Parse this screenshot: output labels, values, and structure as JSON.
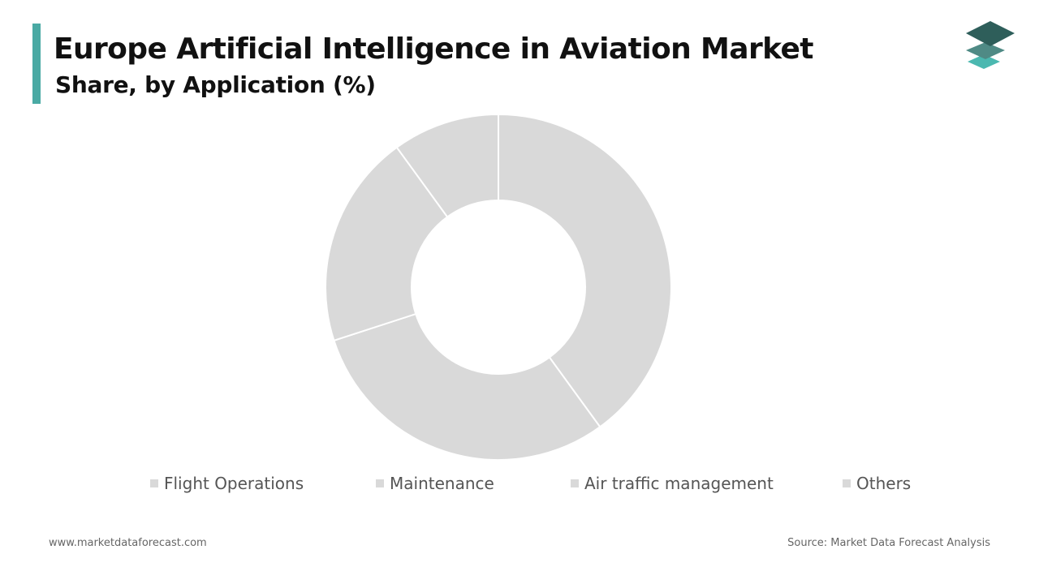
{
  "header": {
    "title": "Europe Artificial Intelligence in Aviation Market",
    "subtitle": "Share, by Application (%)"
  },
  "colors": {
    "accent": "#4aaaa4",
    "slice": "#d9d9d9",
    "slice_border": "#ffffff",
    "logo_top": "#2e5e5a",
    "logo_mid": "#4f8a85",
    "logo_bottom": "#4bb8b0"
  },
  "logo": {
    "icon": "stacked-layers-icon"
  },
  "chart_data": {
    "type": "pie",
    "donut": true,
    "labels": [
      "Flight Operations",
      "Maintenance",
      "Air traffic management",
      "Others"
    ],
    "values": [
      40,
      30,
      20,
      10
    ],
    "legend_position": "bottom"
  },
  "footer": {
    "website": "www.marketdataforecast.com",
    "source": "Source: Market Data Forecast Analysis"
  }
}
